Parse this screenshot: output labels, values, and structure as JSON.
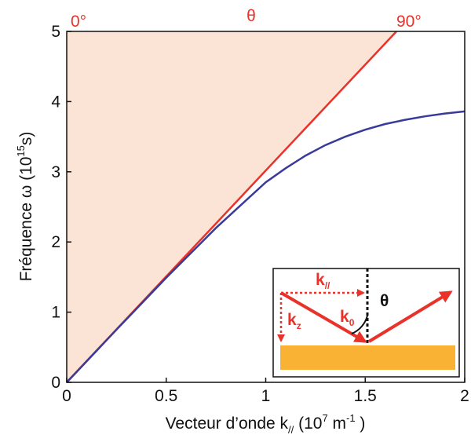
{
  "chart_data": {
    "type": "line",
    "xlim": [
      0,
      2
    ],
    "ylim": [
      0,
      5
    ],
    "xticks": [
      0,
      0.5,
      1,
      1.5,
      2
    ],
    "yticks": [
      0,
      1,
      2,
      3,
      4,
      5
    ],
    "x_label": [
      "Vecteur d’onde k",
      "//",
      " (10",
      "7",
      " m",
      "-1",
      " )"
    ],
    "y_label": [
      "Fréquence ω (10",
      "15",
      "s)"
    ],
    "top_labels": [
      "0°",
      "θ",
      "90°"
    ],
    "inset_labels": [
      [
        "k",
        "//"
      ],
      [
        "k",
        "z"
      ],
      [
        "k",
        "0"
      ],
      "θ"
    ],
    "series": [
      {
        "color": "#e8322a",
        "fill": "#fbe4d6",
        "x": [
          0,
          1.657
        ],
        "values": [
          0,
          5
        ]
      },
      {
        "color": "#3a3a9a",
        "x": [
          0,
          0.25,
          0.5,
          0.75,
          1,
          1.1,
          1.2,
          1.3,
          1.4,
          1.5,
          1.6,
          1.7,
          1.8,
          1.9,
          2
        ],
        "values": [
          0,
          0.75,
          1.49,
          2.2,
          2.85,
          3.05,
          3.23,
          3.38,
          3.5,
          3.6,
          3.68,
          3.74,
          3.79,
          3.83,
          3.86
        ]
      }
    ]
  }
}
